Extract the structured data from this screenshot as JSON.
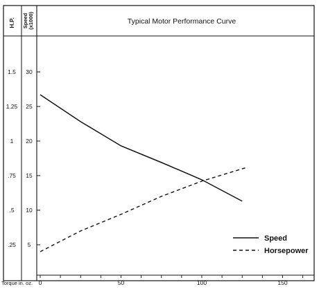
{
  "chart_data": {
    "type": "line",
    "title": "Typical Motor Performance Curve",
    "header_labels": {
      "hp": "H.P.",
      "speed_line1": "Speed",
      "speed_line2": "(x1000)"
    },
    "xlabel": "Torque in. oz.",
    "xticks": [
      0,
      50,
      100,
      150
    ],
    "xlim": [
      0,
      175
    ],
    "hp_axis": {
      "label": "H.P.",
      "ticks": [
        "1.5",
        "1.25",
        "1",
        ".75",
        ".5",
        ".25"
      ],
      "range": [
        0,
        1.75
      ]
    },
    "speed_axis": {
      "label": "Speed (x1000)",
      "ticks": [
        "30",
        "25",
        "20",
        "15",
        "10",
        "5"
      ],
      "range": [
        0,
        35
      ]
    },
    "series": [
      {
        "name": "Speed",
        "line_style": "solid",
        "axis": "speed",
        "points": [
          {
            "x": 0,
            "y": 26.7
          },
          {
            "x": 25,
            "y": 22.8
          },
          {
            "x": 50,
            "y": 19.3
          },
          {
            "x": 75,
            "y": 16.9
          },
          {
            "x": 100,
            "y": 14.4
          },
          {
            "x": 125,
            "y": 11.3
          }
        ]
      },
      {
        "name": "Horsepower",
        "line_style": "dashed",
        "axis": "hp",
        "points": [
          {
            "x": 0,
            "y": 0.2
          },
          {
            "x": 25,
            "y": 0.35
          },
          {
            "x": 50,
            "y": 0.47
          },
          {
            "x": 75,
            "y": 0.6
          },
          {
            "x": 100,
            "y": 0.71
          },
          {
            "x": 128,
            "y": 0.81
          }
        ]
      }
    ],
    "legend": [
      {
        "label": "Speed",
        "line_style": "solid"
      },
      {
        "label": "Horsepower",
        "line_style": "dashed"
      }
    ],
    "legend_position": "lower-right",
    "grid": false
  }
}
